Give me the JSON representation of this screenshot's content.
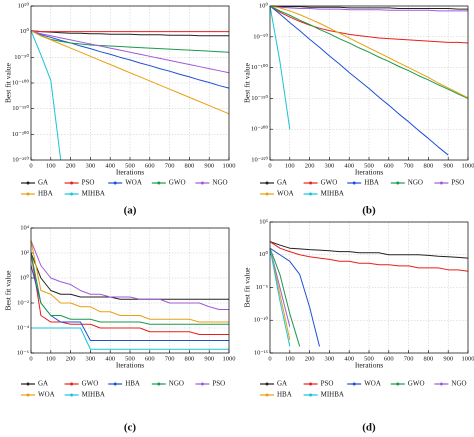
{
  "chart_data": [
    {
      "type": "line",
      "caption": "(a)",
      "xlabel": "Iterations",
      "ylabel": "Best fit value",
      "log": true,
      "grid": true,
      "x": [
        0,
        50,
        100,
        150,
        200,
        250,
        300,
        350,
        400,
        450,
        500,
        550,
        600,
        650,
        700,
        750,
        800,
        850,
        900,
        950,
        1000
      ],
      "xlim": [
        0,
        1000
      ],
      "xticks": [
        0,
        100,
        200,
        300,
        400,
        500,
        600,
        700,
        800,
        900,
        1000
      ],
      "ylim": [
        1e-250,
        1e+50
      ],
      "yticks": [
        {
          "value": 1e+50,
          "label": "10⁵⁰"
        },
        {
          "value": 1,
          "label": "10⁰"
        },
        {
          "value": 1e-50,
          "label": "10⁻⁵⁰"
        },
        {
          "value": 1e-100,
          "label": "10⁻¹⁰⁰"
        },
        {
          "value": 1e-150,
          "label": "10⁻¹⁵⁰"
        },
        {
          "value": 1e-200,
          "label": "10⁻²⁰⁰"
        },
        {
          "value": 1e-250,
          "label": "10⁻²⁵⁰"
        }
      ],
      "series": [
        {
          "name": "GA",
          "color": "#222222",
          "values": [
            100.0,
            1,
            0.1,
            0.01,
            0.001,
            0.001,
            0.0001,
            0.0001,
            1e-05,
            1e-05,
            1e-05,
            1e-06,
            1e-06,
            1e-06,
            1e-07,
            1e-07,
            1e-07,
            1e-08,
            1e-08,
            1e-08,
            1e-08
          ]
        },
        {
          "name": "PSO",
          "color": "#e8201c",
          "values": [
            100.0,
            1,
            1,
            1,
            1,
            1,
            1,
            1,
            1,
            1,
            1,
            1,
            1,
            1,
            1,
            1,
            1,
            1,
            1,
            1,
            1
          ]
        },
        {
          "name": "WOA",
          "color": "#1f4fd6",
          "values": [
            100.0,
            1e-06,
            1e-11,
            1e-17,
            1e-22,
            1e-28,
            1e-33,
            1e-39,
            1e-44,
            1e-50,
            1e-55,
            1e-61,
            1e-66,
            1e-72,
            1e-77,
            1e-83,
            1e-88,
            1e-94,
            1e-99,
            1e-105,
            1e-110
          ]
        },
        {
          "name": "GWO",
          "color": "#1a9a4a",
          "values": [
            100.0,
            1e-08,
            1e-15,
            1e-19,
            1e-22,
            1e-24,
            1e-26,
            1e-27,
            1e-28,
            1e-29,
            1e-30,
            1e-31,
            1e-32,
            1e-33,
            1e-34,
            1e-35,
            1e-36,
            1e-37,
            1e-38,
            1e-39,
            1e-40
          ]
        },
        {
          "name": "NGO",
          "color": "#a05ad6",
          "values": [
            100.0,
            0.0001,
            1e-08,
            1e-12,
            1e-16,
            1e-20,
            1e-24,
            1e-28,
            1e-32,
            1e-36,
            1e-40,
            1e-44,
            1e-48,
            1e-52,
            1e-56,
            1e-60,
            1e-64,
            1e-68,
            1e-72,
            1e-76,
            1e-80
          ]
        },
        {
          "name": "HBA",
          "color": "#e8a010",
          "values": [
            100.0,
            1e-08,
            1e-16,
            1e-24,
            1e-32,
            1e-40,
            1e-48,
            1e-56,
            1e-64,
            1e-72,
            1e-80,
            1e-88,
            1e-96,
            1e-104,
            1e-112,
            1e-120,
            1e-128,
            1e-136,
            1e-144,
            1e-152,
            1e-160
          ]
        },
        {
          "name": "MIHBA",
          "color": "#18c4d8",
          "values": [
            100.0,
            1e-45,
            1e-95,
            1e-250,
            null,
            null,
            null,
            null,
            null,
            null,
            null,
            null,
            null,
            null,
            null,
            null,
            null,
            null,
            null,
            null,
            null
          ]
        }
      ]
    },
    {
      "type": "line",
      "caption": "(b)",
      "xlabel": "Iterations",
      "ylabel": "Best fit value",
      "log": true,
      "grid": true,
      "x": [
        0,
        50,
        100,
        150,
        200,
        250,
        300,
        350,
        400,
        450,
        500,
        550,
        600,
        650,
        700,
        750,
        800,
        850,
        900,
        950,
        1000
      ],
      "xlim": [
        0,
        1000
      ],
      "xticks": [
        0,
        100,
        200,
        300,
        400,
        500,
        600,
        700,
        800,
        900,
        1000
      ],
      "ylim": [
        1e-250,
        1
      ],
      "yticks": [
        {
          "value": 1,
          "label": "10⁰"
        },
        {
          "value": 1e-50,
          "label": "10⁻⁵⁰"
        },
        {
          "value": 1e-100,
          "label": "10⁻¹⁰⁰"
        },
        {
          "value": 1e-150,
          "label": "10⁻¹⁵⁰"
        },
        {
          "value": 1e-200,
          "label": "10⁻²⁰⁰"
        },
        {
          "value": 1e-250,
          "label": "10⁻²⁵⁰"
        }
      ],
      "series": [
        {
          "name": "GA",
          "color": "#222222",
          "values": [
            1,
            0.1,
            0.1,
            0.1,
            0.01,
            0.01,
            0.01,
            0.01,
            0.001,
            0.001,
            0.001,
            0.001,
            0.001,
            0.0001,
            0.0001,
            0.0001,
            0.0001,
            0.0001,
            0.0001,
            1e-05,
            1e-05
          ]
        },
        {
          "name": "GWO",
          "color": "#e8201c",
          "values": [
            1,
            1e-10,
            1e-18,
            1e-25,
            1e-31,
            1e-36,
            1e-40,
            1e-43,
            1e-46,
            1e-48,
            1e-50,
            1e-52,
            1e-53,
            1e-54,
            1e-55,
            1e-56,
            1e-57,
            1e-58,
            1e-59,
            1e-59,
            1e-60
          ]
        },
        {
          "name": "HBA",
          "color": "#1f4fd6",
          "values": [
            1,
            1e-13,
            1e-27,
            1e-40,
            1e-54,
            1e-67,
            1e-81,
            1e-94,
            1e-108,
            1e-121,
            1e-134,
            1e-148,
            1e-161,
            1e-175,
            1e-188,
            1e-202,
            1e-215,
            1e-229,
            1e-242,
            null,
            null
          ]
        },
        {
          "name": "NGO",
          "color": "#1a9a4a",
          "values": [
            1,
            1e-08,
            1e-15,
            1e-23,
            1e-30,
            1e-38,
            1e-45,
            1e-53,
            1e-60,
            1e-68,
            1e-75,
            1e-83,
            1e-90,
            1e-98,
            1e-105,
            1e-113,
            1e-120,
            1e-128,
            1e-135,
            1e-143,
            1e-150
          ]
        },
        {
          "name": "PSO",
          "color": "#a05ad6",
          "values": [
            1,
            0.01,
            0.001,
            0.0001,
            0.0001,
            1e-05,
            1e-05,
            1e-05,
            1e-06,
            1e-06,
            1e-06,
            1e-06,
            1e-07,
            1e-07,
            1e-07,
            1e-07,
            1e-07,
            1e-08,
            1e-08,
            1e-08,
            1e-08
          ]
        },
        {
          "name": "WOA",
          "color": "#e8a010",
          "values": [
            1,
            0.001,
            1e-08,
            1e-14,
            1e-21,
            1e-28,
            1e-36,
            1e-44,
            1e-52,
            1e-60,
            1e-68,
            1e-76,
            1e-84,
            1e-92,
            1e-100,
            1e-108,
            1e-116,
            1e-125,
            1e-133,
            1e-141,
            1e-149
          ]
        },
        {
          "name": "MIHBA",
          "color": "#18c4d8",
          "values": [
            1,
            1e-90,
            1e-200,
            null,
            null,
            null,
            null,
            null,
            null,
            null,
            null,
            null,
            null,
            null,
            null,
            null,
            null,
            null,
            null,
            null,
            null
          ]
        }
      ]
    },
    {
      "type": "line",
      "caption": "(c)",
      "xlabel": "Iterations",
      "ylabel": "Best fit value",
      "log": true,
      "grid": true,
      "x": [
        0,
        50,
        100,
        150,
        200,
        250,
        300,
        350,
        400,
        450,
        500,
        550,
        600,
        650,
        700,
        750,
        800,
        850,
        900,
        950,
        1000
      ],
      "xlim": [
        0,
        1000
      ],
      "xticks": [
        0,
        100,
        200,
        300,
        400,
        500,
        600,
        700,
        800,
        900,
        1000
      ],
      "ylim": [
        1e-06,
        10000.0
      ],
      "yticks": [
        {
          "value": 10000.0,
          "label": "10⁴"
        },
        {
          "value": 100.0,
          "label": "10²"
        },
        {
          "value": 1,
          "label": "10⁰"
        },
        {
          "value": 0.01,
          "label": "10⁻²"
        },
        {
          "value": 0.0001,
          "label": "10⁻⁴"
        },
        {
          "value": 1e-06,
          "label": "10⁻⁶"
        }
      ],
      "series": [
        {
          "name": "GA",
          "color": "#222222",
          "values": [
            100,
            1,
            0.1,
            0.05,
            0.05,
            0.03,
            0.03,
            0.03,
            0.03,
            0.02,
            0.02,
            0.02,
            0.02,
            0.02,
            0.02,
            0.02,
            0.02,
            0.02,
            0.02,
            0.02,
            0.02
          ]
        },
        {
          "name": "GWO",
          "color": "#e8201c",
          "values": [
            100,
            0.001,
            0.0003,
            0.0003,
            0.0002,
            0.0002,
            0.0002,
            0.0001,
            0.0001,
            0.0001,
            0.0001,
            0.0001,
            5e-05,
            5e-05,
            5e-05,
            5e-05,
            5e-05,
            3e-05,
            3e-05,
            3e-05,
            3e-05
          ]
        },
        {
          "name": "HBA",
          "color": "#1f4fd6",
          "values": [
            10,
            0.01,
            0.001,
            0.0003,
            0.0003,
            0.0003,
            1e-05,
            1e-05,
            1e-05,
            1e-05,
            1e-05,
            1e-05,
            1e-05,
            1e-05,
            1e-05,
            1e-05,
            1e-05,
            1e-05,
            1e-05,
            1e-05,
            1e-05
          ]
        },
        {
          "name": "NGO",
          "color": "#1a9a4a",
          "values": [
            100,
            0.01,
            0.001,
            0.001,
            0.0005,
            0.0005,
            0.0005,
            0.0003,
            0.0003,
            0.0003,
            0.0003,
            0.0003,
            0.0002,
            0.0002,
            0.0002,
            0.0002,
            0.0002,
            0.0002,
            0.0002,
            0.0002,
            0.0002
          ]
        },
        {
          "name": "PSO",
          "color": "#a05ad6",
          "values": [
            1000,
            10,
            1,
            0.5,
            0.3,
            0.1,
            0.05,
            0.05,
            0.03,
            0.03,
            0.03,
            0.02,
            0.02,
            0.02,
            0.01,
            0.01,
            0.01,
            0.01,
            0.005,
            0.003,
            0.003
          ]
        },
        {
          "name": "WOA",
          "color": "#e8a010",
          "values": [
            1000,
            0.1,
            0.05,
            0.01,
            0.01,
            0.005,
            0.005,
            0.002,
            0.002,
            0.001,
            0.001,
            0.001,
            0.0005,
            0.0005,
            0.0005,
            0.0005,
            0.0005,
            0.0003,
            0.0003,
            0.0003,
            0.0003
          ]
        },
        {
          "name": "MIHBA",
          "color": "#18c4d8",
          "values": [
            0.0001,
            0.0001,
            0.0001,
            0.0001,
            0.0001,
            0.0001,
            2e-06,
            2e-06,
            2e-06,
            2e-06,
            2e-06,
            2e-06,
            2e-06,
            2e-06,
            2e-06,
            2e-06,
            2e-06,
            2e-06,
            2e-06,
            2e-06,
            2e-06
          ]
        }
      ]
    },
    {
      "type": "line",
      "caption": "(d)",
      "xlabel": "Iterations",
      "ylabel": "Best fit value",
      "log": true,
      "grid": true,
      "x": [
        0,
        50,
        100,
        150,
        200,
        250,
        300,
        350,
        400,
        450,
        500,
        550,
        600,
        650,
        700,
        750,
        800,
        850,
        900,
        950,
        1000
      ],
      "xlim": [
        0,
        1000
      ],
      "xticks": [
        0,
        100,
        200,
        300,
        400,
        500,
        600,
        700,
        800,
        900,
        1000
      ],
      "ylim": [
        1e-15,
        100000.0
      ],
      "yticks": [
        {
          "value": 100000.0,
          "label": "10⁵"
        },
        {
          "value": 1,
          "label": "10⁰"
        },
        {
          "value": 1e-05,
          "label": "10⁻⁵"
        },
        {
          "value": 1e-10,
          "label": "10⁻¹⁰"
        },
        {
          "value": 1e-15,
          "label": "10⁻¹⁵"
        }
      ],
      "series": [
        {
          "name": "GA",
          "color": "#222222",
          "values": [
            100,
            30,
            10,
            8,
            6,
            5,
            4,
            3,
            3,
            2,
            2,
            2,
            1,
            1,
            1,
            1,
            0.8,
            0.6,
            0.5,
            0.4,
            0.3
          ]
        },
        {
          "name": "PSO",
          "color": "#e8201c",
          "values": [
            100,
            10,
            3,
            1,
            0.5,
            0.3,
            0.2,
            0.1,
            0.1,
            0.05,
            0.05,
            0.03,
            0.03,
            0.02,
            0.02,
            0.01,
            0.01,
            0.01,
            0.005,
            0.005,
            0.003
          ]
        },
        {
          "name": "WOA",
          "color": "#1f4fd6",
          "values": [
            10,
            1,
            0.1,
            0.001,
            1e-08,
            1e-14,
            null,
            null,
            null,
            null,
            null,
            null,
            null,
            null,
            null,
            null,
            null,
            null,
            null,
            null,
            null
          ]
        },
        {
          "name": "GWO",
          "color": "#1a9a4a",
          "values": [
            10,
            0.001,
            1e-09,
            1e-14,
            null,
            null,
            null,
            null,
            null,
            null,
            null,
            null,
            null,
            null,
            null,
            null,
            null,
            null,
            null,
            null,
            null
          ]
        },
        {
          "name": "NGO",
          "color": "#a05ad6",
          "values": [
            10,
            1e-05,
            1e-11,
            null,
            null,
            null,
            null,
            null,
            null,
            null,
            null,
            null,
            null,
            null,
            null,
            null,
            null,
            null,
            null,
            null,
            null
          ]
        },
        {
          "name": "HBA",
          "color": "#e8a010",
          "values": [
            10,
            1e-06,
            1e-13,
            null,
            null,
            null,
            null,
            null,
            null,
            null,
            null,
            null,
            null,
            null,
            null,
            null,
            null,
            null,
            null,
            null,
            null
          ]
        },
        {
          "name": "MIHBA",
          "color": "#18c4d8",
          "values": [
            10,
            1e-07,
            1e-14,
            null,
            null,
            null,
            null,
            null,
            null,
            null,
            null,
            null,
            null,
            null,
            null,
            null,
            null,
            null,
            null,
            null,
            null
          ]
        }
      ]
    }
  ]
}
